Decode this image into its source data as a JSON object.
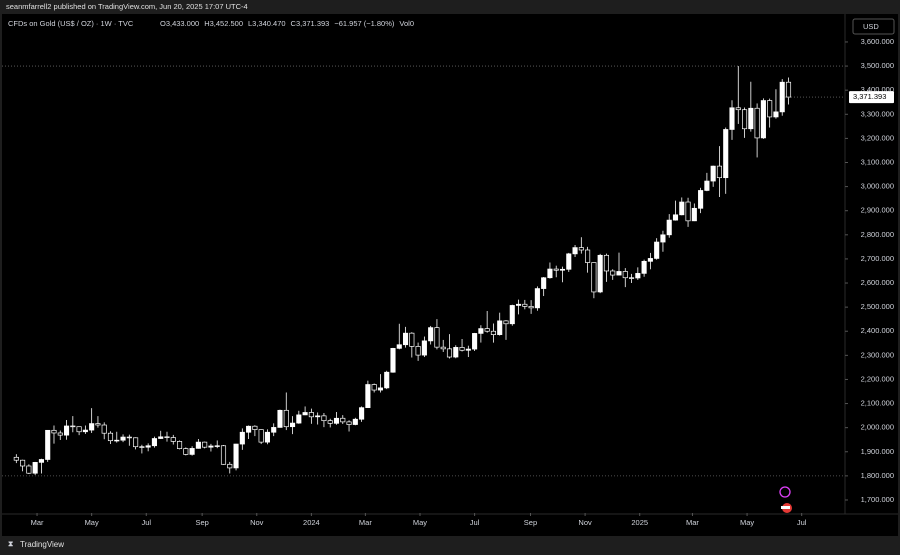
{
  "header": {
    "publisher": "seanmfarrell2 published on TradingView.com, Jun 20, 2025 17:07 UTC-4",
    "brand": "TradingView"
  },
  "chart_data": {
    "type": "candlestick",
    "symbol": "CFDs on Gold (US$ / OZ) · 1W · TVC",
    "legend_items": [
      "O3,433.000",
      "H3,452.500",
      "L3,340.470",
      "C3,371.393",
      "−61.957 (−1.80%)",
      "Vol0"
    ],
    "currency": "USD",
    "up_color": "#ffffff",
    "down_color": "#000000",
    "wick_color": "#ffffff",
    "ohlc": [
      [
        1877,
        1890,
        1853,
        1865
      ],
      [
        1865,
        1867,
        1819,
        1841
      ],
      [
        1841,
        1848,
        1808,
        1811
      ],
      [
        1811,
        1858,
        1804,
        1856
      ],
      [
        1856,
        1871,
        1810,
        1868
      ],
      [
        1868,
        1990,
        1858,
        1989
      ],
      [
        1989,
        2009,
        1934,
        1978
      ],
      [
        1978,
        1988,
        1949,
        1969
      ],
      [
        1969,
        2032,
        1950,
        2007
      ],
      [
        2007,
        2048,
        1981,
        2004
      ],
      [
        2004,
        2005,
        1969,
        1983
      ],
      [
        1983,
        2009,
        1974,
        1990
      ],
      [
        1990,
        2081,
        1978,
        2017
      ],
      [
        2017,
        2048,
        2000,
        2011
      ],
      [
        2011,
        2022,
        1952,
        1977
      ],
      [
        1977,
        1985,
        1932,
        1946
      ],
      [
        1946,
        1983,
        1938,
        1948
      ],
      [
        1948,
        1972,
        1940,
        1961
      ],
      [
        1961,
        1971,
        1925,
        1958
      ],
      [
        1958,
        1960,
        1910,
        1921
      ],
      [
        1921,
        1929,
        1893,
        1919
      ],
      [
        1919,
        1935,
        1902,
        1925
      ],
      [
        1925,
        1963,
        1917,
        1955
      ],
      [
        1955,
        1987,
        1953,
        1962
      ],
      [
        1962,
        1983,
        1942,
        1959
      ],
      [
        1959,
        1970,
        1930,
        1943
      ],
      [
        1943,
        1947,
        1910,
        1913
      ],
      [
        1913,
        1918,
        1885,
        1889
      ],
      [
        1889,
        1923,
        1884,
        1914
      ],
      [
        1914,
        1953,
        1913,
        1940
      ],
      [
        1940,
        1942,
        1914,
        1919
      ],
      [
        1919,
        1933,
        1901,
        1924
      ],
      [
        1924,
        1947,
        1915,
        1925
      ],
      [
        1925,
        1928,
        1846,
        1848
      ],
      [
        1848,
        1858,
        1810,
        1833
      ],
      [
        1833,
        1933,
        1823,
        1932
      ],
      [
        1932,
        1997,
        1908,
        1981
      ],
      [
        1981,
        2009,
        1953,
        2006
      ],
      [
        2006,
        2010,
        1965,
        1992
      ],
      [
        1992,
        1993,
        1932,
        1940
      ],
      [
        1940,
        1993,
        1931,
        1981
      ],
      [
        1981,
        2018,
        1965,
        2001
      ],
      [
        2001,
        2075,
        2000,
        2072
      ],
      [
        2072,
        2146,
        1990,
        2004
      ],
      [
        2004,
        2048,
        1973,
        2019
      ],
      [
        2019,
        2070,
        2016,
        2053
      ],
      [
        2053,
        2088,
        2052,
        2063
      ],
      [
        2063,
        2079,
        2016,
        2045
      ],
      [
        2045,
        2063,
        2013,
        2049
      ],
      [
        2049,
        2061,
        2002,
        2029
      ],
      [
        2029,
        2037,
        2001,
        2018
      ],
      [
        2018,
        2065,
        2012,
        2039
      ],
      [
        2039,
        2052,
        2015,
        2024
      ],
      [
        2024,
        2031,
        1984,
        2013
      ],
      [
        2013,
        2041,
        2010,
        2035
      ],
      [
        2035,
        2088,
        2024,
        2083
      ],
      [
        2083,
        2195,
        2083,
        2179
      ],
      [
        2179,
        2183,
        2146,
        2156
      ],
      [
        2156,
        2222,
        2146,
        2165
      ],
      [
        2165,
        2236,
        2160,
        2230
      ],
      [
        2230,
        2331,
        2228,
        2329
      ],
      [
        2329,
        2431,
        2325,
        2344
      ],
      [
        2344,
        2418,
        2332,
        2392
      ],
      [
        2392,
        2396,
        2291,
        2337
      ],
      [
        2337,
        2353,
        2277,
        2301
      ],
      [
        2301,
        2378,
        2293,
        2360
      ],
      [
        2360,
        2422,
        2345,
        2415
      ],
      [
        2415,
        2450,
        2325,
        2334
      ],
      [
        2334,
        2364,
        2314,
        2327
      ],
      [
        2327,
        2388,
        2287,
        2293
      ],
      [
        2293,
        2342,
        2288,
        2333
      ],
      [
        2333,
        2368,
        2316,
        2321
      ],
      [
        2321,
        2340,
        2293,
        2326
      ],
      [
        2326,
        2393,
        2318,
        2391
      ],
      [
        2391,
        2425,
        2353,
        2411
      ],
      [
        2411,
        2484,
        2394,
        2400
      ],
      [
        2400,
        2432,
        2353,
        2386
      ],
      [
        2386,
        2477,
        2382,
        2443
      ],
      [
        2443,
        2446,
        2364,
        2431
      ],
      [
        2431,
        2510,
        2423,
        2507
      ],
      [
        2507,
        2531,
        2470,
        2512
      ],
      [
        2512,
        2530,
        2491,
        2503
      ],
      [
        2503,
        2529,
        2472,
        2497
      ],
      [
        2497,
        2586,
        2485,
        2577
      ],
      [
        2577,
        2625,
        2546,
        2622
      ],
      [
        2622,
        2685,
        2618,
        2658
      ],
      [
        2658,
        2672,
        2624,
        2653
      ],
      [
        2653,
        2668,
        2603,
        2657
      ],
      [
        2657,
        2725,
        2646,
        2721
      ],
      [
        2721,
        2758,
        2708,
        2747
      ],
      [
        2747,
        2790,
        2722,
        2737
      ],
      [
        2737,
        2750,
        2643,
        2685
      ],
      [
        2685,
        2686,
        2537,
        2563
      ],
      [
        2563,
        2721,
        2558,
        2715
      ],
      [
        2715,
        2722,
        2605,
        2650
      ],
      [
        2650,
        2657,
        2613,
        2633
      ],
      [
        2633,
        2726,
        2631,
        2648
      ],
      [
        2648,
        2662,
        2583,
        2622
      ],
      [
        2622,
        2638,
        2600,
        2621
      ],
      [
        2621,
        2665,
        2613,
        2640
      ],
      [
        2640,
        2697,
        2626,
        2690
      ],
      [
        2690,
        2725,
        2657,
        2702
      ],
      [
        2702,
        2786,
        2697,
        2770
      ],
      [
        2770,
        2817,
        2730,
        2800
      ],
      [
        2800,
        2886,
        2788,
        2861
      ],
      [
        2861,
        2942,
        2859,
        2883
      ],
      [
        2883,
        2955,
        2881,
        2936
      ],
      [
        2936,
        2954,
        2833,
        2858
      ],
      [
        2858,
        2930,
        2857,
        2910
      ],
      [
        2910,
        2995,
        2890,
        2984
      ],
      [
        2984,
        3057,
        2981,
        3023
      ],
      [
        3023,
        3087,
        2999,
        3085
      ],
      [
        3085,
        3168,
        2957,
        3037
      ],
      [
        3037,
        3245,
        2970,
        3237
      ],
      [
        3237,
        3358,
        3194,
        3327
      ],
      [
        3327,
        3500,
        3260,
        3319
      ],
      [
        3319,
        3328,
        3202,
        3240
      ],
      [
        3240,
        3435,
        3228,
        3325
      ],
      [
        3325,
        3345,
        3121,
        3202
      ],
      [
        3202,
        3366,
        3198,
        3357
      ],
      [
        3357,
        3365,
        3245,
        3289
      ],
      [
        3289,
        3404,
        3282,
        3310
      ],
      [
        3310,
        3446,
        3294,
        3433
      ],
      [
        3433,
        3452.5,
        3340.47,
        3371.393
      ]
    ],
    "xlim": [
      -2.6,
      132
    ],
    "xticks": [
      {
        "value": 3.3,
        "label": "Mar"
      },
      {
        "value": 12,
        "label": "May"
      },
      {
        "value": 20.7,
        "label": "Jul"
      },
      {
        "value": 29.6,
        "label": "Sep"
      },
      {
        "value": 38.3,
        "label": "Nov"
      },
      {
        "value": 47,
        "label": "2024"
      },
      {
        "value": 55.6,
        "label": "Mar"
      },
      {
        "value": 64.3,
        "label": "May"
      },
      {
        "value": 73,
        "label": "Jul"
      },
      {
        "value": 81.9,
        "label": "Sep"
      },
      {
        "value": 90.6,
        "label": "Nov"
      },
      {
        "value": 99.3,
        "label": "2025"
      },
      {
        "value": 107.7,
        "label": "Mar"
      },
      {
        "value": 116.4,
        "label": "May"
      },
      {
        "value": 125.1,
        "label": "Jul"
      }
    ],
    "ylim": [
      1646,
      3716
    ],
    "yticks": [
      {
        "value": 1700,
        "label": "1,700.000"
      },
      {
        "value": 1800,
        "label": "1,800.000"
      },
      {
        "value": 1900,
        "label": "1,900.000"
      },
      {
        "value": 2000,
        "label": "2,000.000"
      },
      {
        "value": 2100,
        "label": "2,100.000"
      },
      {
        "value": 2200,
        "label": "2,200.000"
      },
      {
        "value": 2300,
        "label": "2,300.000"
      },
      {
        "value": 2400,
        "label": "2,400.000"
      },
      {
        "value": 2500,
        "label": "2,500.000"
      },
      {
        "value": 2600,
        "label": "2,600.000"
      },
      {
        "value": 2700,
        "label": "2,700.000"
      },
      {
        "value": 2800,
        "label": "2,800.000"
      },
      {
        "value": 2900,
        "label": "2,900.000"
      },
      {
        "value": 3000,
        "label": "3,000.000"
      },
      {
        "value": 3100,
        "label": "3,100.000"
      },
      {
        "value": 3200,
        "label": "3,200.000"
      },
      {
        "value": 3300,
        "label": "3,300.000"
      },
      {
        "value": 3400,
        "label": "3,400.000"
      },
      {
        "value": 3500,
        "label": "3,500.000"
      },
      {
        "value": 3600,
        "label": "3,600.000"
      }
    ],
    "hlines": [
      3500,
      1800
    ],
    "last_price": {
      "value": 3371.393,
      "label": "3,371.393"
    }
  }
}
